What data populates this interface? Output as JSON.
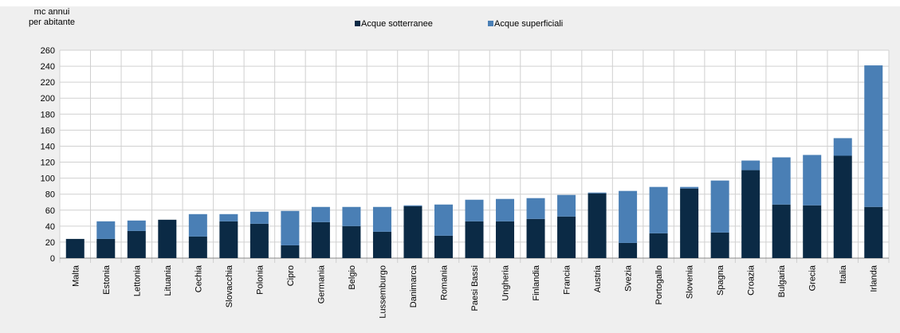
{
  "chart_data": {
    "type": "stacked_bar",
    "ylabel": [
      "mc annui",
      "per abitante"
    ],
    "categories": [
      "Malta",
      "Estonia",
      "Lettonia",
      "Lituania",
      "Cechia",
      "Slovacchia",
      "Polonia",
      "Cipro",
      "Germania",
      "Belgio",
      "Lussemburgo",
      "Danimarca",
      "Romania",
      "Paesi Bassi",
      "Ungheria",
      "Finlandia",
      "Francia",
      "Austria",
      "Svezia",
      "Portogallo",
      "Slovenia",
      "Spagna",
      "Croazia",
      "Bulgaria",
      "Grecia",
      "Italia",
      "Irlanda"
    ],
    "series": [
      {
        "name": "Acque sotterranee",
        "color": "#0b2a45",
        "values": [
          24,
          24,
          34,
          48,
          27,
          46,
          43,
          16,
          45,
          40,
          33,
          65,
          28,
          46,
          46,
          49,
          52,
          81,
          19,
          31,
          87,
          32,
          110,
          67,
          66,
          128,
          64
        ]
      },
      {
        "name": "Acque superficiali",
        "color": "#4a7fb5",
        "values": [
          0,
          22,
          13,
          0,
          28,
          9,
          15,
          43,
          19,
          24,
          31,
          1,
          39,
          27,
          28,
          26,
          27,
          1,
          65,
          58,
          2,
          65,
          12,
          59,
          63,
          22,
          177
        ]
      }
    ],
    "ylim": [
      0,
      260
    ],
    "yticks": [
      0,
      20,
      40,
      60,
      80,
      100,
      120,
      140,
      160,
      180,
      200,
      220,
      240,
      260
    ],
    "grid": true
  }
}
